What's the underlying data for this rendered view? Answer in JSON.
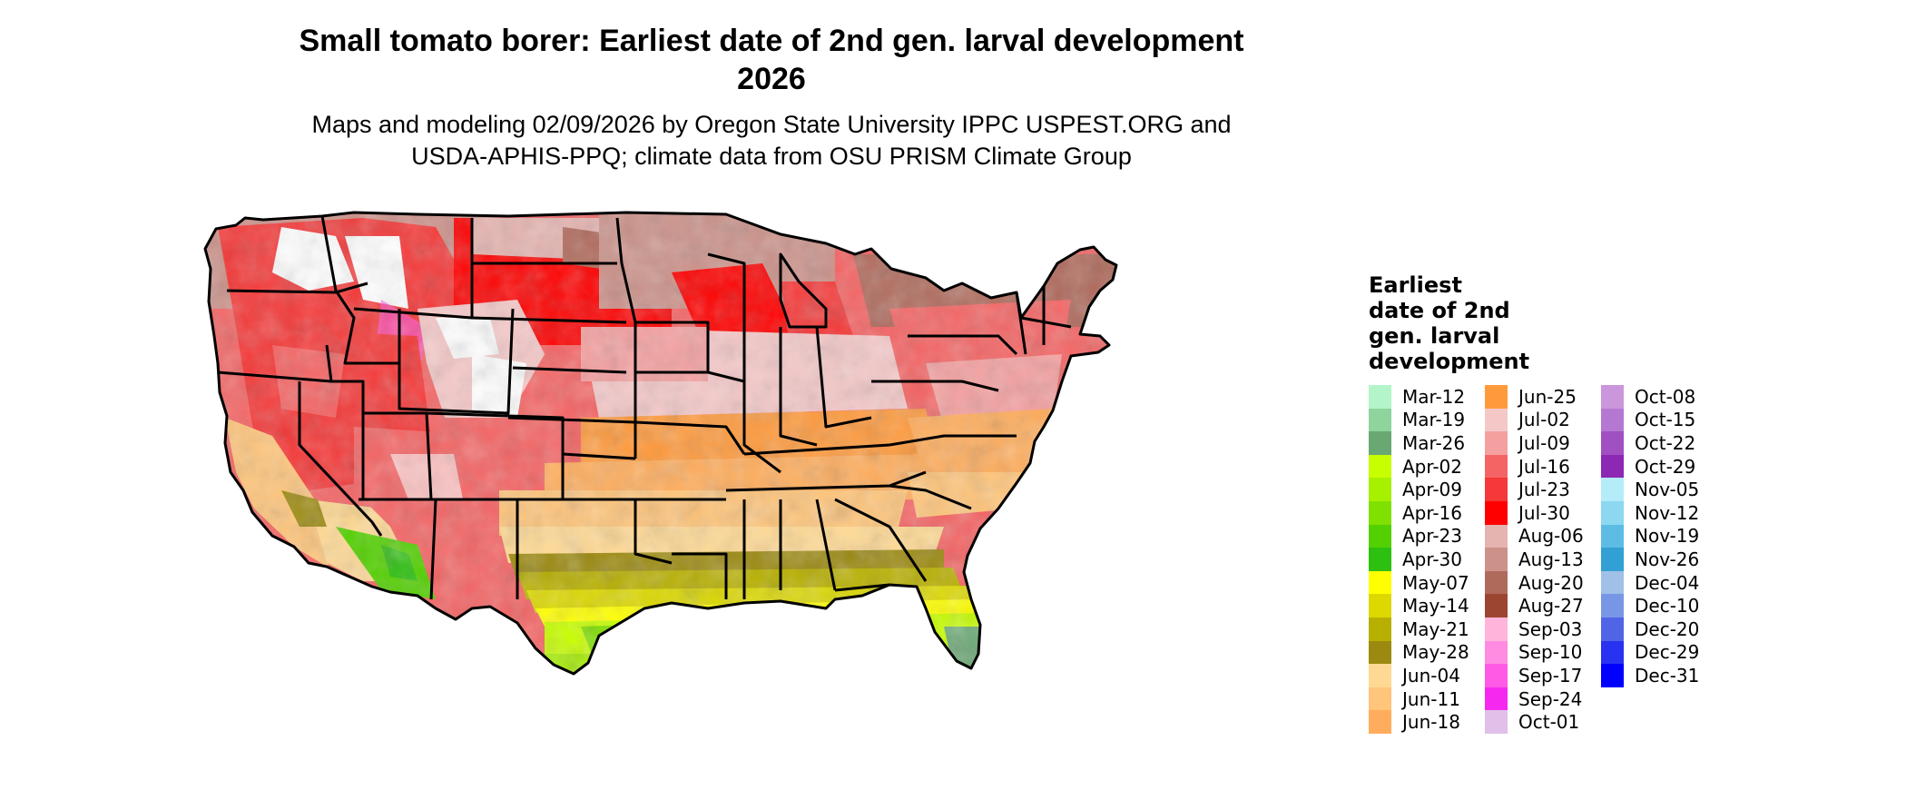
{
  "title": "Small tomato borer: Earliest date of 2nd gen. larval development\n2026",
  "title_line1": "Small tomato borer: Earliest date of 2nd gen. larval development",
  "title_line2": "2026",
  "subtitle_line1": "Maps and modeling 02/09/2026 by Oregon State University IPPC USPEST.ORG and",
  "subtitle_line2": "USDA-APHIS-PPQ; climate data from OSU PRISM Climate Group",
  "legend": {
    "title": "Earliest\ndate of 2nd\ngen. larval\ndevelopment",
    "items": [
      {
        "label": "Mar-12",
        "color": "#b3f5c8"
      },
      {
        "label": "Mar-19",
        "color": "#8ed49c"
      },
      {
        "label": "Mar-26",
        "color": "#69a873"
      },
      {
        "label": "Apr-02",
        "color": "#c8ff00"
      },
      {
        "label": "Apr-09",
        "color": "#a6f000"
      },
      {
        "label": "Apr-16",
        "color": "#80e000"
      },
      {
        "label": "Apr-23",
        "color": "#52d000"
      },
      {
        "label": "Apr-30",
        "color": "#2ec010"
      },
      {
        "label": "May-07",
        "color": "#ffff00"
      },
      {
        "label": "May-14",
        "color": "#dcd800"
      },
      {
        "label": "May-21",
        "color": "#b8b000"
      },
      {
        "label": "May-28",
        "color": "#9c8a10"
      },
      {
        "label": "Jun-04",
        "color": "#ffd993"
      },
      {
        "label": "Jun-11",
        "color": "#ffc57a"
      },
      {
        "label": "Jun-18",
        "color": "#ffad5c"
      },
      {
        "label": "Jun-25",
        "color": "#ff9a3c"
      },
      {
        "label": "Jul-02",
        "color": "#f5c8c8"
      },
      {
        "label": "Jul-09",
        "color": "#f5a0a0"
      },
      {
        "label": "Jul-16",
        "color": "#f56464"
      },
      {
        "label": "Jul-23",
        "color": "#f53838"
      },
      {
        "label": "Jul-30",
        "color": "#ff0000"
      },
      {
        "label": "Aug-06",
        "color": "#e6b4b0"
      },
      {
        "label": "Aug-13",
        "color": "#cc928a"
      },
      {
        "label": "Aug-20",
        "color": "#b06a5c"
      },
      {
        "label": "Aug-27",
        "color": "#9c4632"
      },
      {
        "label": "Sep-03",
        "color": "#ffb4dc"
      },
      {
        "label": "Sep-10",
        "color": "#ff8ce0"
      },
      {
        "label": "Sep-17",
        "color": "#ff5ae6"
      },
      {
        "label": "Sep-24",
        "color": "#f528f0"
      },
      {
        "label": "Oct-01",
        "color": "#e0c0e8"
      },
      {
        "label": "Oct-08",
        "color": "#cc96dc"
      },
      {
        "label": "Oct-15",
        "color": "#b478d2"
      },
      {
        "label": "Oct-22",
        "color": "#a050c0"
      },
      {
        "label": "Oct-29",
        "color": "#8c28b4"
      },
      {
        "label": "Nov-05",
        "color": "#b4ecfa"
      },
      {
        "label": "Nov-12",
        "color": "#8cd8f0"
      },
      {
        "label": "Nov-19",
        "color": "#5cbce4"
      },
      {
        "label": "Nov-26",
        "color": "#32a0d4"
      },
      {
        "label": "Dec-04",
        "color": "#a0c0e8"
      },
      {
        "label": "Dec-10",
        "color": "#7896e6"
      },
      {
        "label": "Dec-20",
        "color": "#5064e6"
      },
      {
        "label": "Dec-29",
        "color": "#2832f0"
      },
      {
        "label": "Dec-31",
        "color": "#0000ff"
      }
    ]
  }
}
